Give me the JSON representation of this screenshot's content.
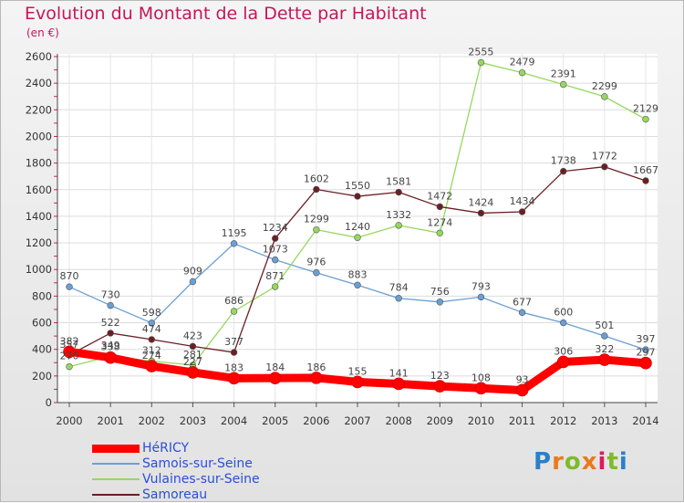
{
  "title": "Evolution du Montant de la Dette par Habitant",
  "subtitle": "(en €)",
  "logo": "Proxiti",
  "chart_data": {
    "type": "line",
    "x": [
      "2000",
      "2001",
      "2002",
      "2003",
      "2004",
      "2005",
      "2006",
      "2007",
      "2008",
      "2009",
      "2010",
      "2011",
      "2012",
      "2013",
      "2014"
    ],
    "ylim": [
      0,
      2600
    ],
    "yticks": [
      0,
      200,
      400,
      600,
      800,
      1000,
      1200,
      1400,
      1600,
      1800,
      2000,
      2200,
      2400,
      2600
    ],
    "grid": true,
    "legend": "bottom-left",
    "series": [
      {
        "name": "HéRICY",
        "color": "#ff0000",
        "width": 9,
        "values": [
          382,
          338,
          274,
          227,
          183,
          184,
          186,
          155,
          141,
          123,
          108,
          93,
          306,
          322,
          297
        ]
      },
      {
        "name": "Samois-sur-Seine",
        "color": "#6a9fd4",
        "width": 1.3,
        "values": [
          870,
          730,
          598,
          909,
          1195,
          1073,
          976,
          883,
          784,
          756,
          793,
          677,
          600,
          501,
          397
        ]
      },
      {
        "name": "Vulaines-sur-Seine",
        "color": "#96d85e",
        "width": 1.3,
        "values": [
          270,
          349,
          312,
          281,
          686,
          871,
          1299,
          1240,
          1332,
          1274,
          2555,
          2479,
          2391,
          2299,
          2129
        ]
      },
      {
        "name": "Samoreau",
        "color": "#6b1f24",
        "width": 1.3,
        "values": [
          357,
          522,
          474,
          423,
          377,
          1234,
          1602,
          1550,
          1581,
          1472,
          1424,
          1434,
          1738,
          1772,
          1667
        ]
      }
    ]
  }
}
